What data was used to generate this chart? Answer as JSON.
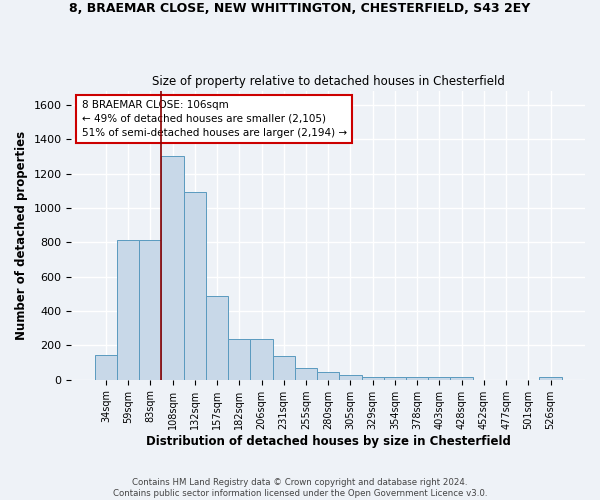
{
  "title_line1": "8, BRAEMAR CLOSE, NEW WHITTINGTON, CHESTERFIELD, S43 2EY",
  "title_line2": "Size of property relative to detached houses in Chesterfield",
  "xlabel": "Distribution of detached houses by size in Chesterfield",
  "ylabel": "Number of detached properties",
  "footer_line1": "Contains HM Land Registry data © Crown copyright and database right 2024.",
  "footer_line2": "Contains public sector information licensed under the Open Government Licence v3.0.",
  "categories": [
    "34sqm",
    "59sqm",
    "83sqm",
    "108sqm",
    "132sqm",
    "157sqm",
    "182sqm",
    "206sqm",
    "231sqm",
    "255sqm",
    "280sqm",
    "305sqm",
    "329sqm",
    "354sqm",
    "378sqm",
    "403sqm",
    "428sqm",
    "452sqm",
    "477sqm",
    "501sqm",
    "526sqm"
  ],
  "values": [
    145,
    815,
    815,
    1300,
    1095,
    490,
    235,
    235,
    140,
    70,
    45,
    25,
    15,
    15,
    15,
    15,
    15,
    0,
    0,
    0,
    15
  ],
  "bar_color": "#c8d8e8",
  "bar_edge_color": "#5a9abf",
  "vline_color": "#8b0000",
  "annotation_text": "8 BRAEMAR CLOSE: 106sqm\n← 49% of detached houses are smaller (2,105)\n51% of semi-detached houses are larger (2,194) →",
  "annotation_box_color": "#ffffff",
  "annotation_box_edge": "#cc0000",
  "ylim": [
    0,
    1680
  ],
  "yticks": [
    0,
    200,
    400,
    600,
    800,
    1000,
    1200,
    1400,
    1600
  ],
  "background_color": "#eef2f7",
  "grid_color": "#ffffff"
}
